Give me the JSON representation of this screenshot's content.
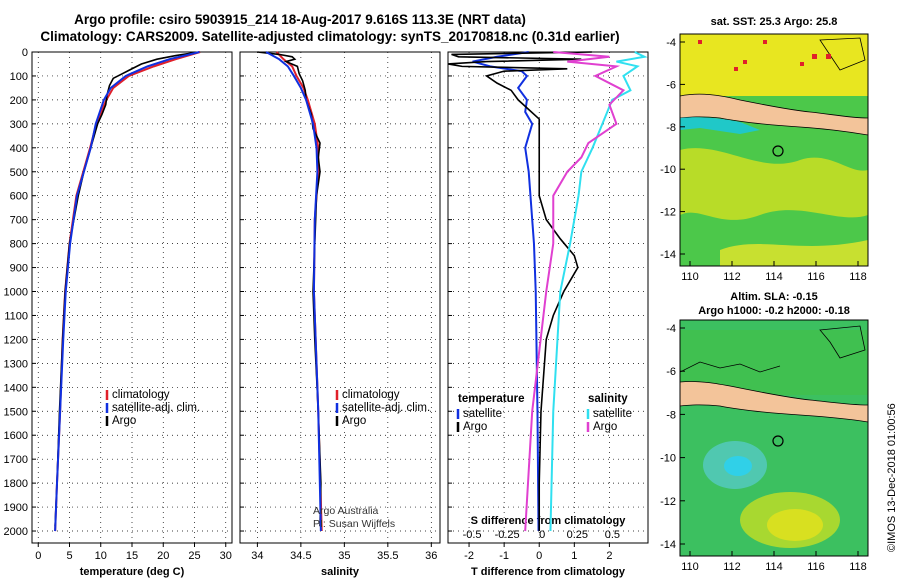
{
  "header": {
    "title_line1": "Argo profile: csiro 5903915_214 18-Aug-2017 9.616S 113.3E (NRT data)",
    "title_line2": "Climatology: CARS2009. Satellite-adjusted climatology: synTS_20170818.nc (0.31d earlier)"
  },
  "colors": {
    "climatology": "#e0202a",
    "satellite": "#1030e0",
    "argo": "#000000",
    "sal_sat": "#30e0f0",
    "sal_argo": "#e040d0"
  },
  "chart_data": [
    {
      "type": "line",
      "name": "temperature-profile",
      "xlabel": "temperature (deg C)",
      "ylabel": "",
      "xlim": [
        -1,
        31
      ],
      "ylim": [
        2050,
        0
      ],
      "xticks": [
        0,
        5,
        10,
        15,
        20,
        25,
        30
      ],
      "yticks": [
        0,
        100,
        200,
        300,
        400,
        500,
        600,
        700,
        800,
        900,
        1000,
        1100,
        1200,
        1300,
        1400,
        1500,
        1600,
        1700,
        1800,
        1900,
        2000
      ],
      "legend": [
        "climatology",
        "satellite-adj. clim.",
        "Argo"
      ],
      "legend_position": "lower-right",
      "series": [
        {
          "name": "climatology",
          "depth": [
            0,
            30,
            60,
            100,
            150,
            200,
            300,
            400,
            500,
            600,
            800,
            1000,
            1200,
            1500,
            1800,
            2000
          ],
          "values": [
            25.9,
            22.0,
            18.5,
            14.5,
            12.0,
            10.9,
            9.3,
            8.3,
            7.2,
            6.1,
            5.0,
            4.3,
            3.9,
            3.5,
            3.0,
            2.7
          ]
        },
        {
          "name": "satellite-adj. clim.",
          "depth": [
            0,
            30,
            60,
            100,
            150,
            200,
            300,
            400,
            500,
            600,
            800,
            1000,
            1200,
            1500,
            1800,
            2000
          ],
          "values": [
            25.8,
            21.0,
            17.5,
            14.0,
            11.6,
            10.5,
            9.2,
            8.4,
            7.3,
            6.2,
            5.1,
            4.4,
            4.0,
            3.5,
            3.0,
            2.7
          ]
        },
        {
          "name": "Argo",
          "depth": [
            0,
            5,
            15,
            30,
            50,
            70,
            90,
            110,
            140,
            180,
            220,
            260,
            300,
            400,
            500,
            600,
            800,
            1000,
            1200,
            1500,
            1800,
            1980
          ],
          "values": [
            25.8,
            24.5,
            22.0,
            19.0,
            16.5,
            15.0,
            13.5,
            12.0,
            11.4,
            11.0,
            10.8,
            10.2,
            9.5,
            8.4,
            7.3,
            6.4,
            5.0,
            4.3,
            3.9,
            3.4,
            3.0,
            2.7
          ]
        }
      ]
    },
    {
      "type": "line",
      "name": "salinity-profile",
      "xlabel": "salinity",
      "ylabel": "",
      "xlim": [
        33.8,
        36.1
      ],
      "ylim": [
        2050,
        0
      ],
      "xticks": [
        34,
        34.5,
        35,
        35.5,
        36
      ],
      "legend": [
        "climatology",
        "satellite-adj. clim.",
        "Argo"
      ],
      "legend_position": "lower-right",
      "annotation": [
        "Argo Australia",
        "PI: Susan Wijffels"
      ],
      "series": [
        {
          "name": "climatology",
          "depth": [
            0,
            30,
            60,
            100,
            150,
            200,
            300,
            400,
            500,
            700,
            1000,
            1500,
            2000
          ],
          "values": [
            34.22,
            34.3,
            34.4,
            34.45,
            34.53,
            34.58,
            34.66,
            34.7,
            34.7,
            34.66,
            34.65,
            34.7,
            34.74
          ]
        },
        {
          "name": "satellite-adj. clim.",
          "depth": [
            0,
            30,
            60,
            100,
            150,
            200,
            300,
            400,
            500,
            700,
            1000,
            1500,
            2000
          ],
          "values": [
            34.1,
            34.25,
            34.35,
            34.42,
            34.5,
            34.56,
            34.64,
            34.68,
            34.69,
            34.66,
            34.65,
            34.7,
            34.73
          ]
        },
        {
          "name": "Argo",
          "depth": [
            0,
            10,
            20,
            30,
            40,
            60,
            90,
            120,
            160,
            200,
            260,
            320,
            380,
            440,
            500,
            600,
            800,
            1000,
            1200,
            1500,
            1800,
            1980
          ],
          "values": [
            34.0,
            34.25,
            34.4,
            34.43,
            34.33,
            34.46,
            34.48,
            34.52,
            34.55,
            34.56,
            34.62,
            34.64,
            34.72,
            34.7,
            34.72,
            34.68,
            34.66,
            34.64,
            34.66,
            34.7,
            34.73,
            34.72
          ]
        }
      ]
    },
    {
      "type": "line",
      "name": "difference-profile",
      "xlabel": "T difference from climatology",
      "xlabel_top": "S difference from climatology",
      "xlim": [
        -2.6,
        3.1
      ],
      "ylim": [
        2050,
        0
      ],
      "xticks": [
        -2,
        -1,
        0,
        1,
        2
      ],
      "xticks_s": [
        "-0.5",
        "-0.25",
        "0",
        "0.25",
        "0.5"
      ],
      "legend_left": {
        "title": "temperature",
        "items": [
          "satellite",
          "Argo"
        ]
      },
      "legend_right": {
        "title": "salinity",
        "items": [
          "satellite",
          "Argo"
        ]
      },
      "series": [
        {
          "name": "T satellite",
          "depth": [
            0,
            20,
            40,
            60,
            80,
            100,
            150,
            200,
            250,
            300,
            400,
            500,
            600,
            700,
            800,
            1000,
            1500,
            2000
          ],
          "values": [
            -0.3,
            -1.2,
            -1.9,
            -1.4,
            -0.5,
            -0.35,
            -0.6,
            -0.35,
            -0.4,
            -0.2,
            -0.4,
            -0.3,
            -0.25,
            -0.2,
            -0.15,
            -0.1,
            -0.05,
            -0.02
          ]
        },
        {
          "name": "T Argo",
          "depth": [
            0,
            10,
            20,
            30,
            40,
            50,
            60,
            70,
            80,
            100,
            130,
            160,
            200,
            240,
            280,
            320,
            400,
            500,
            600,
            700,
            780,
            850,
            900,
            950,
            1000,
            1100,
            1200,
            1500,
            1800,
            2000
          ],
          "values": [
            1.5,
            -2.5,
            -2.3,
            1.2,
            -1.5,
            -2.6,
            -2.2,
            0.8,
            -1.0,
            -1.5,
            -1.2,
            -0.8,
            -0.6,
            -0.3,
            0.0,
            0.0,
            0.0,
            0.0,
            0.0,
            0.2,
            0.6,
            1.0,
            1.1,
            0.9,
            0.7,
            0.4,
            0.2,
            0.05,
            0.0,
            0.0
          ]
        },
        {
          "name": "S satellite",
          "depth": [
            0,
            20,
            40,
            60,
            100,
            160,
            200,
            300,
            400,
            500,
            600,
            800,
            1000,
            1500,
            2000
          ],
          "values": [
            0.68,
            0.75,
            0.55,
            0.7,
            0.6,
            0.65,
            0.52,
            0.45,
            0.38,
            0.3,
            0.28,
            0.22,
            0.15,
            0.1,
            0.08
          ]
        },
        {
          "name": "S Argo",
          "depth": [
            0,
            20,
            40,
            60,
            100,
            160,
            220,
            300,
            380,
            440,
            500,
            600,
            800,
            1000,
            1500,
            2000
          ],
          "values": [
            0.1,
            0.5,
            0.2,
            0.55,
            0.4,
            0.6,
            0.5,
            0.55,
            0.35,
            0.3,
            0.2,
            0.1,
            0.1,
            0.05,
            -0.05,
            -0.1
          ]
        }
      ]
    }
  ],
  "map_top": {
    "title": "sat. SST: 25.3 Argo: 25.8",
    "lat_ticks": [
      "-4",
      "-6",
      "-8",
      "-10",
      "-12",
      "-14"
    ],
    "lon_ticks": [
      "110",
      "112",
      "114",
      "116",
      "118"
    ]
  },
  "map_bottom": {
    "title_line1": "Altim. SLA: -0.15",
    "title_line2": "Argo h1000: -0.2 h2000: -0.18",
    "lat_ticks": [
      "-4",
      "-6",
      "-8",
      "-10",
      "-12",
      "-14"
    ],
    "lon_ticks": [
      "110",
      "112",
      "114",
      "116",
      "118"
    ]
  },
  "credit": "©IMOS 13-Dec-2018 01:00:56"
}
